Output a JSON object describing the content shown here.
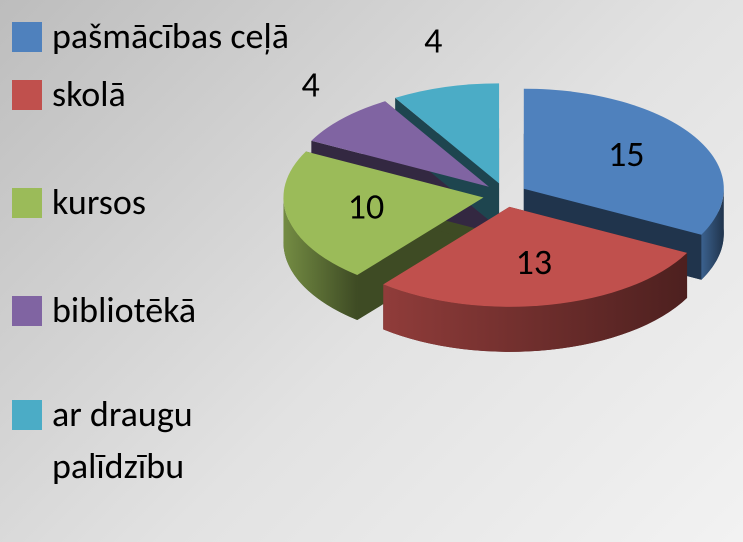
{
  "chart_data": {
    "type": "pie",
    "categories": [
      "pašmācības ceļā",
      "skolā",
      "kursos",
      "bibliotēkā",
      "ar draugu palīdzību"
    ],
    "values": [
      15,
      13,
      10,
      4,
      4
    ],
    "colors": [
      "#4f81bd",
      "#c0504d",
      "#9bbb59",
      "#8064a2",
      "#4bacc6"
    ],
    "legend": "left"
  }
}
